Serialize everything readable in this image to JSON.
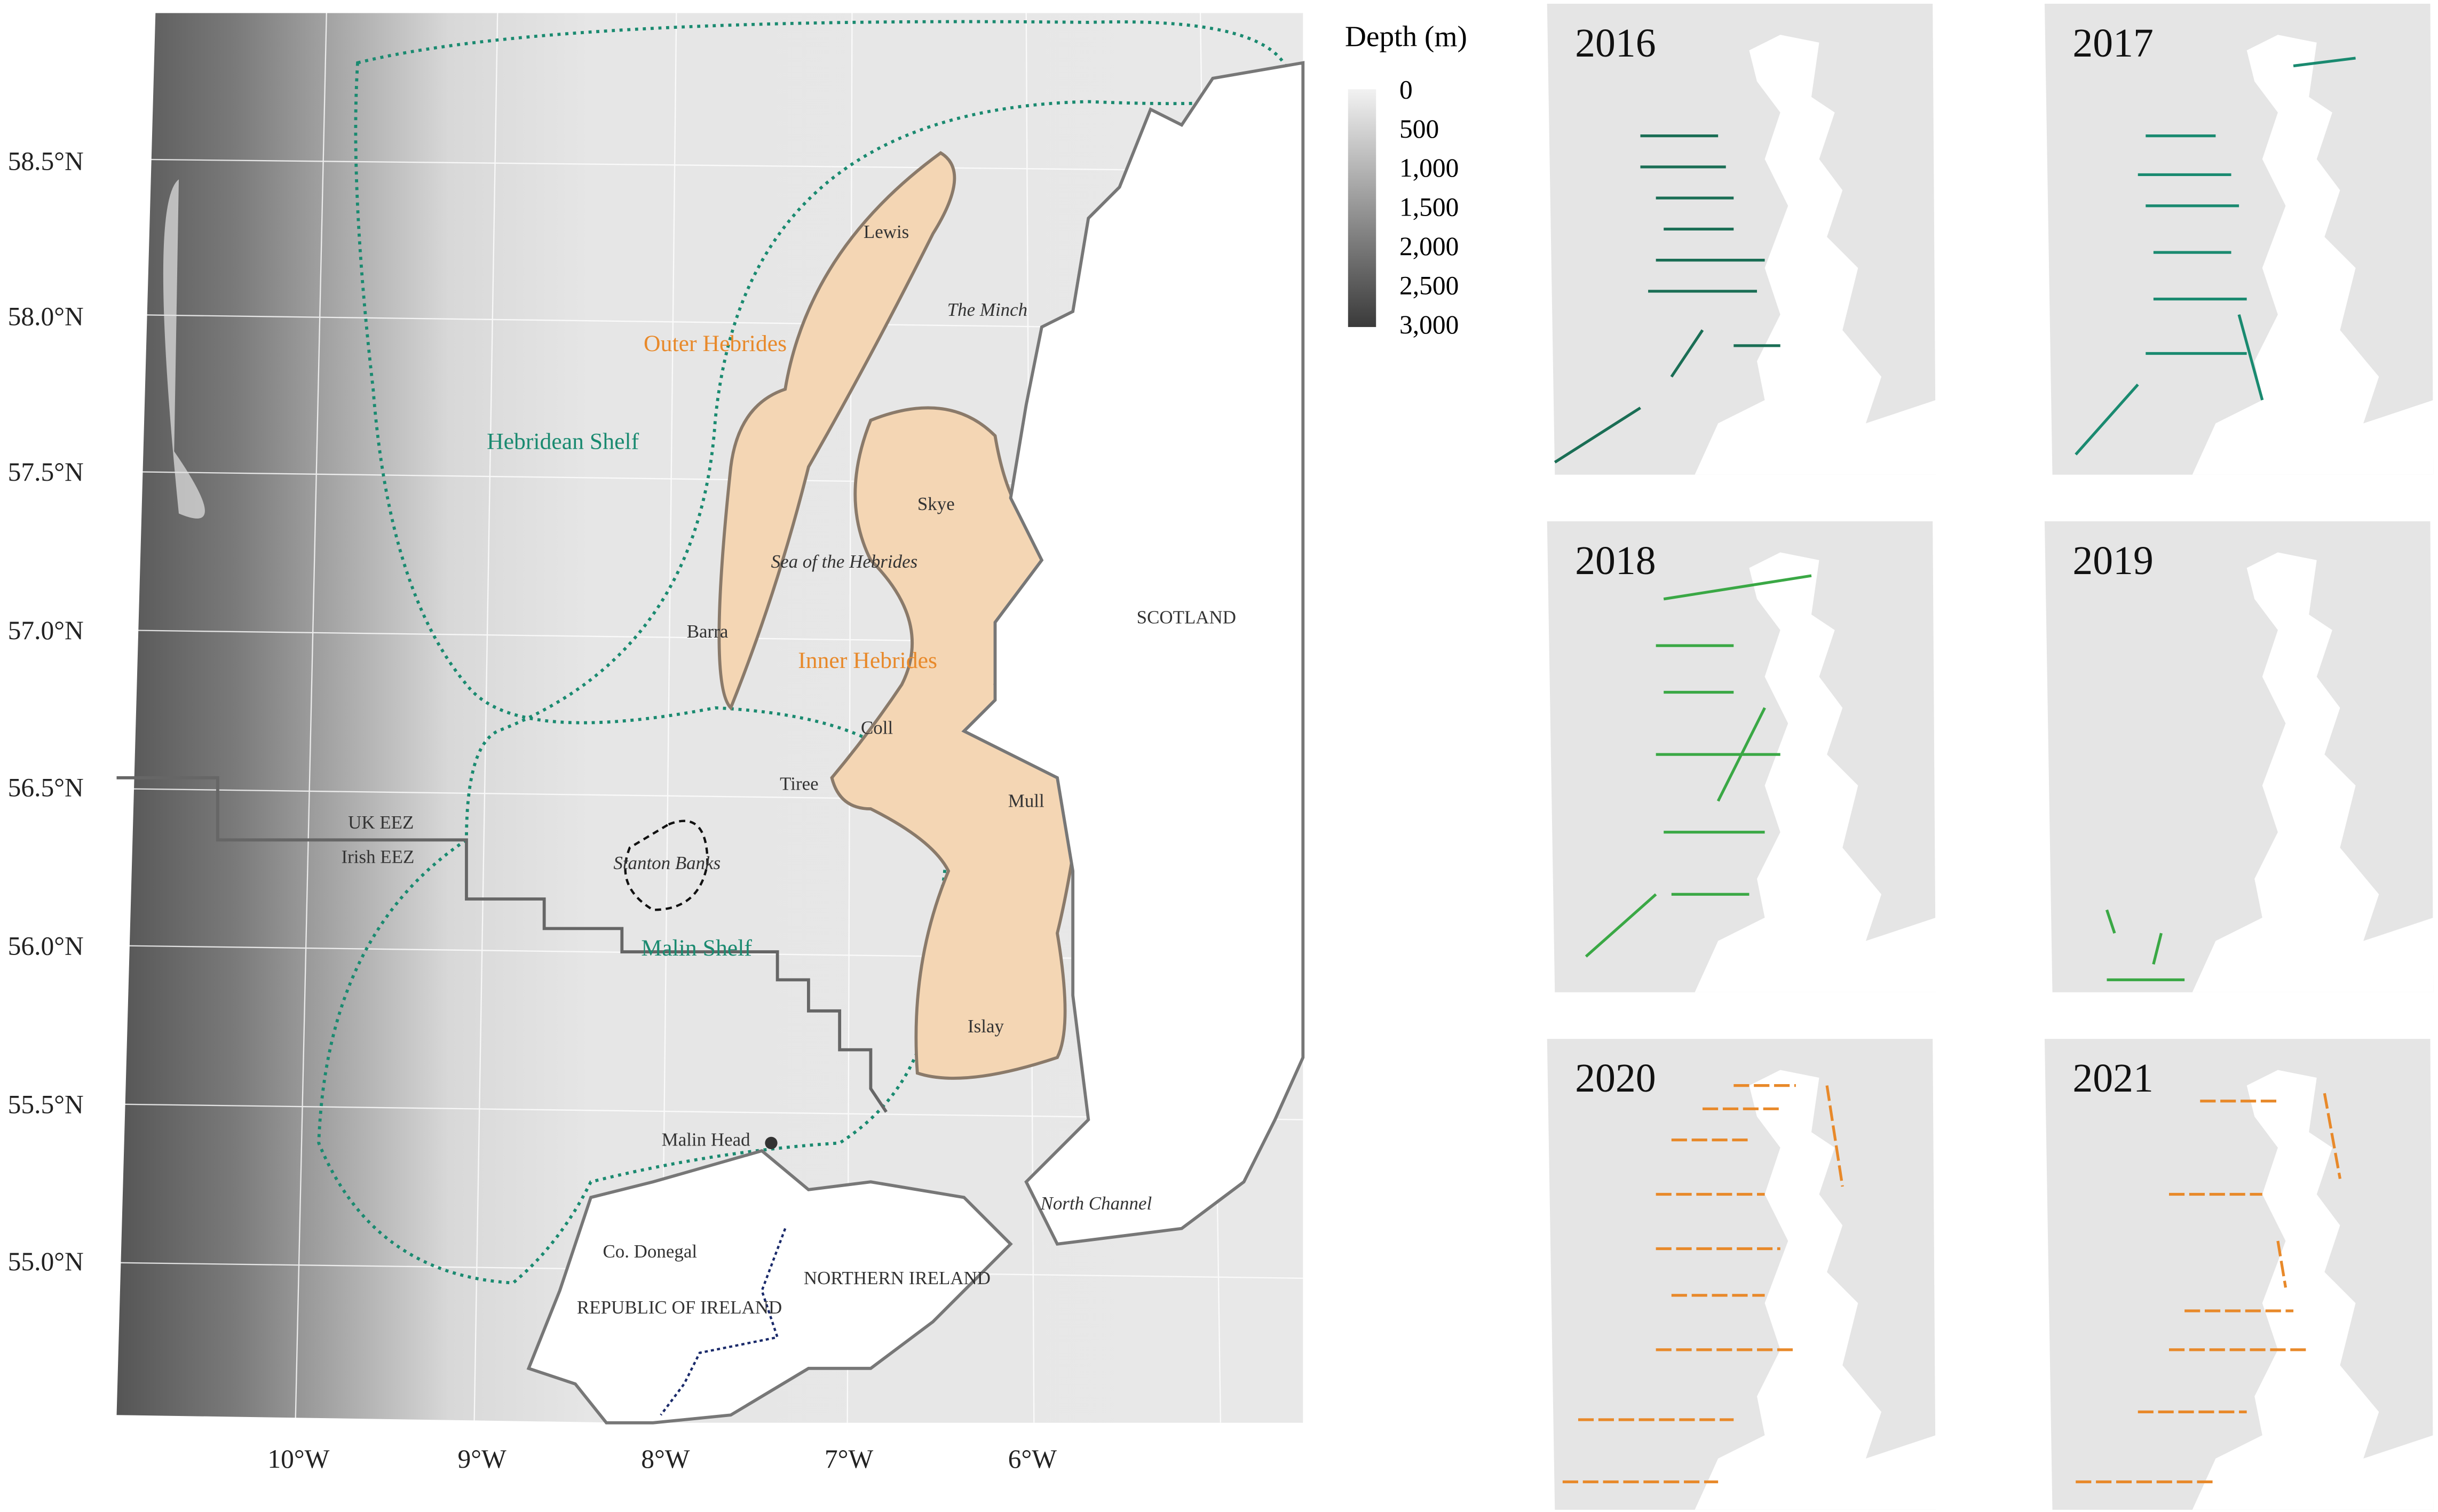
{
  "legend": {
    "title": "Depth (m)",
    "ticks": [
      "0",
      "500",
      "1,000",
      "1,500",
      "2,000",
      "2,500",
      "3,000"
    ]
  },
  "latitudes": [
    "58.5°N",
    "58.0°N",
    "57.5°N",
    "57.0°N",
    "56.5°N",
    "56.0°N",
    "55.5°N",
    "55.0°N"
  ],
  "longitudes": [
    "10°W",
    "9°W",
    "8°W",
    "7°W",
    "6°W"
  ],
  "places": {
    "lewis": "Lewis",
    "the_minch": "The Minch",
    "outer_hebrides": "Outer Hebrides",
    "hebridean_shelf": "Hebridean Shelf",
    "skye": "Skye",
    "sea_of_the_hebrides": "Sea of the Hebrides",
    "barra": "Barra",
    "inner_hebrides": "Inner Hebrides",
    "scotland": "SCOTLAND",
    "coll": "Coll",
    "tiree": "Tiree",
    "mull": "Mull",
    "uk_eez": "UK EEZ",
    "irish_eez": "Irish EEZ",
    "stanton_banks": "Stanton Banks",
    "malin_shelf": "Malin Shelf",
    "islay": "Islay",
    "malin_head": "Malin Head",
    "north_channel": "North Channel",
    "co_donegal": "Co. Donegal",
    "republic_of_ireland": "REPUBLIC OF IRELAND",
    "northern_ireland": "NORTHERN IRELAND"
  },
  "panels": [
    "2016",
    "2017",
    "2018",
    "2019",
    "2020",
    "2021"
  ]
}
